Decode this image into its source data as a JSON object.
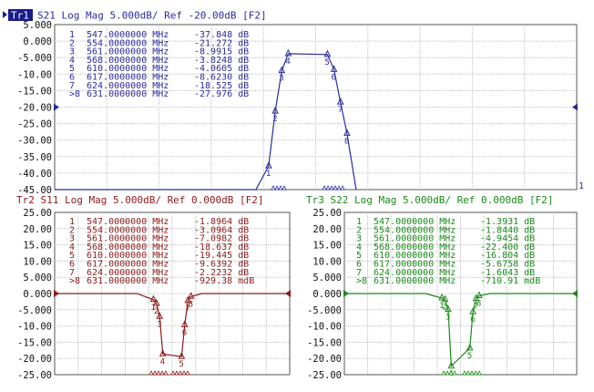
{
  "trace1": {
    "badge": "Tr1",
    "header": "S21 Log Mag 5.000dB/ Ref -20.00dB [F2]",
    "color": "#2b2b9c",
    "y_ticks": [
      "5.000",
      "0.000",
      "-5.000",
      "-10.00",
      "-15.00",
      "-20.00",
      "-25.00",
      "-30.00",
      "-35.00",
      "-40.00",
      "-45.00"
    ],
    "markers": [
      {
        "n": "1",
        "freq": "547.0000000 MHz",
        "val": "-37.848 dB"
      },
      {
        "n": "2",
        "freq": "554.0000000 MHz",
        "val": "-21.272 dB"
      },
      {
        "n": "3",
        "freq": "561.0000000 MHz",
        "val": "-8.9915 dB"
      },
      {
        "n": "4",
        "freq": "568.0000000 MHz",
        "val": "-3.8248 dB"
      },
      {
        "n": "5",
        "freq": "610.0000000 MHz",
        "val": "-4.0605 dB"
      },
      {
        "n": "6",
        "freq": "617.0000000 MHz",
        "val": "-8.6230 dB"
      },
      {
        "n": "7",
        "freq": "624.0000000 MHz",
        "val": "-18.525 dB"
      },
      {
        "n": ">8",
        "freq": "631.0000000 MHz",
        "val": "-27.976 dB"
      }
    ]
  },
  "trace2": {
    "header": "Tr2 S11 Log Mag 5.000dB/ Ref 0.000dB [F2]",
    "color": "#8b1a1a",
    "y_ticks": [
      "25.00",
      "20.00",
      "15.00",
      "10.00",
      "5.000",
      "0.000",
      "-5.000",
      "-10.00",
      "-15.00",
      "-20.00",
      "-25.00"
    ],
    "markers": [
      {
        "n": "1",
        "freq": "547.0000000 MHz",
        "val": "-1.8964 dB"
      },
      {
        "n": "2",
        "freq": "554.0000000 MHz",
        "val": "-3.0964 dB"
      },
      {
        "n": "3",
        "freq": "561.0000000 MHz",
        "val": "-7.0982 dB"
      },
      {
        "n": "4",
        "freq": "568.0000000 MHz",
        "val": "-18.637 dB"
      },
      {
        "n": "5",
        "freq": "610.0000000 MHz",
        "val": "-19.445 dB"
      },
      {
        "n": "6",
        "freq": "617.0000000 MHz",
        "val": "-9.6392 dB"
      },
      {
        "n": "7",
        "freq": "624.0000000 MHz",
        "val": "-2.2232 dB"
      },
      {
        "n": ">8",
        "freq": "631.0000000 MHz",
        "val": "-929.38 mdB"
      }
    ]
  },
  "trace3": {
    "header": "Tr3 S22 Log Mag 5.000dB/ Ref 0.000dB [F2]",
    "color": "#1a8a1a",
    "y_ticks": [
      "25.00",
      "20.00",
      "15.00",
      "10.00",
      "5.000",
      "0.000",
      "-5.000",
      "-10.00",
      "-15.00",
      "-20.00",
      "-25.00"
    ],
    "markers": [
      {
        "n": "1",
        "freq": "547.0000000 MHz",
        "val": "-1.3931 dB"
      },
      {
        "n": "2",
        "freq": "554.0000000 MHz",
        "val": "-1.8440 dB"
      },
      {
        "n": "3",
        "freq": "561.0000000 MHz",
        "val": "-4.9454 dB"
      },
      {
        "n": "4",
        "freq": "568.0000000 MHz",
        "val": "-22.400 dB"
      },
      {
        "n": "5",
        "freq": "610.0000000 MHz",
        "val": "-16.804 dB"
      },
      {
        "n": "6",
        "freq": "617.0000000 MHz",
        "val": "-5.6758 dB"
      },
      {
        "n": "7",
        "freq": "624.0000000 MHz",
        "val": "-1.6043 dB"
      },
      {
        "n": ">8",
        "freq": "631.0000000 MHz",
        "val": "-710.91 mdB"
      }
    ]
  },
  "chart_data": [
    {
      "type": "line",
      "series": [
        {
          "name": "S21"
        }
      ],
      "ylim": [
        -45,
        5
      ],
      "x": [
        547,
        554,
        561,
        568,
        610,
        617,
        624,
        631
      ],
      "values": [
        -37.848,
        -21.272,
        -8.9915,
        -3.8248,
        -4.0605,
        -8.623,
        -18.525,
        -27.976
      ]
    },
    {
      "type": "line",
      "series": [
        {
          "name": "S11"
        }
      ],
      "ylim": [
        -25,
        25
      ],
      "x": [
        547,
        554,
        561,
        568,
        610,
        617,
        624,
        631
      ],
      "values": [
        -1.8964,
        -3.0964,
        -7.0982,
        -18.637,
        -19.445,
        -9.6392,
        -2.2232,
        -0.92938
      ]
    },
    {
      "type": "line",
      "series": [
        {
          "name": "S22"
        }
      ],
      "ylim": [
        -25,
        25
      ],
      "x": [
        547,
        554,
        561,
        568,
        610,
        617,
        624,
        631
      ],
      "values": [
        -1.3931,
        -1.844,
        -4.9454,
        -22.4,
        -16.804,
        -5.6758,
        -1.6043,
        -0.71091
      ]
    }
  ],
  "side_marker_label": "1"
}
